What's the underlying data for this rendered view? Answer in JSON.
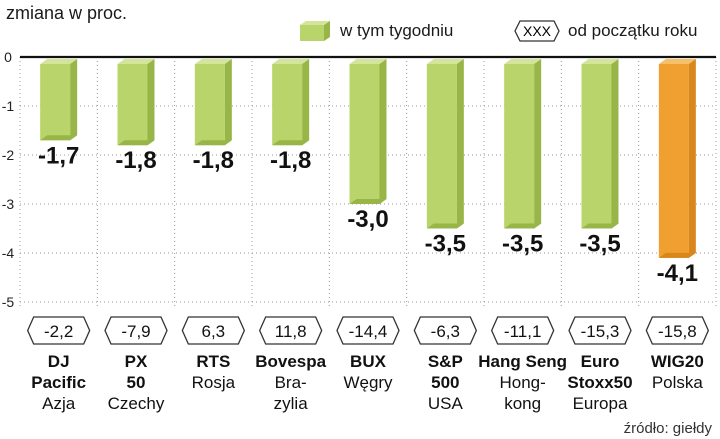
{
  "chart_data": {
    "type": "bar",
    "ylabel": "zmiana w proc.",
    "ylim": [
      -5,
      0
    ],
    "yticks": [
      "0",
      "-1",
      "-2",
      "-3",
      "-4",
      "-5"
    ],
    "legend": {
      "week_label": "w tym tygodniu",
      "ytd_badge": "XXX",
      "ytd_label": "od początku roku"
    },
    "categories": [
      {
        "name": "DJ Pacific",
        "lines": [
          {
            "t": "DJ",
            "b": true
          },
          {
            "t": "Pacific",
            "b": true
          },
          {
            "t": "Azja",
            "b": false
          }
        ],
        "value": -1.7,
        "label": "-1,7",
        "ytd": "-2,2",
        "highlight": false
      },
      {
        "name": "PX 50",
        "lines": [
          {
            "t": "PX",
            "b": true
          },
          {
            "t": "50",
            "b": true
          },
          {
            "t": "Czechy",
            "b": false
          }
        ],
        "value": -1.8,
        "label": "-1,8",
        "ytd": "-7,9",
        "highlight": false
      },
      {
        "name": "RTS",
        "lines": [
          {
            "t": "RTS",
            "b": true
          },
          {
            "t": "Rosja",
            "b": false
          }
        ],
        "value": -1.8,
        "label": "-1,8",
        "ytd": "6,3",
        "highlight": false
      },
      {
        "name": "Bovespa",
        "lines": [
          {
            "t": "Bovespa",
            "b": true
          },
          {
            "t": "Bra-",
            "b": false
          },
          {
            "t": "zylia",
            "b": false
          }
        ],
        "value": -1.8,
        "label": "-1,8",
        "ytd": "11,8",
        "highlight": false
      },
      {
        "name": "BUX",
        "lines": [
          {
            "t": "BUX",
            "b": true
          },
          {
            "t": "Węgry",
            "b": false
          }
        ],
        "value": -3.0,
        "label": "-3,0",
        "ytd": "-14,4",
        "highlight": false
      },
      {
        "name": "S&P 500",
        "lines": [
          {
            "t": "S&P",
            "b": true
          },
          {
            "t": "500",
            "b": true
          },
          {
            "t": "USA",
            "b": false
          }
        ],
        "value": -3.5,
        "label": "-3,5",
        "ytd": "-6,3",
        "highlight": false
      },
      {
        "name": "Hang Seng",
        "lines": [
          {
            "t": "Hang Seng",
            "b": true
          },
          {
            "t": "Hong-",
            "b": false
          },
          {
            "t": "kong",
            "b": false
          }
        ],
        "value": -3.5,
        "label": "-3,5",
        "ytd": "-11,1",
        "highlight": false
      },
      {
        "name": "Euro Stoxx50",
        "lines": [
          {
            "t": "Euro",
            "b": true
          },
          {
            "t": "Stoxx50",
            "b": true
          },
          {
            "t": "Europa",
            "b": false
          }
        ],
        "value": -3.5,
        "label": "-3,5",
        "ytd": "-15,3",
        "highlight": false
      },
      {
        "name": "WIG20",
        "lines": [
          {
            "t": "WIG20",
            "b": true
          },
          {
            "t": "Polska",
            "b": false
          }
        ],
        "value": -4.1,
        "label": "-4,1",
        "ytd": "-15,8",
        "highlight": true
      }
    ],
    "colors": {
      "bar": "#b9d46a",
      "bar_light": "#d3e59b",
      "bar_dark": "#98b548",
      "highlight": "#f0a030",
      "highlight_light": "#f6c068",
      "highlight_dark": "#d9861a",
      "badge_stroke": "#333333"
    },
    "grid": true
  },
  "source": "źródło: giełdy"
}
